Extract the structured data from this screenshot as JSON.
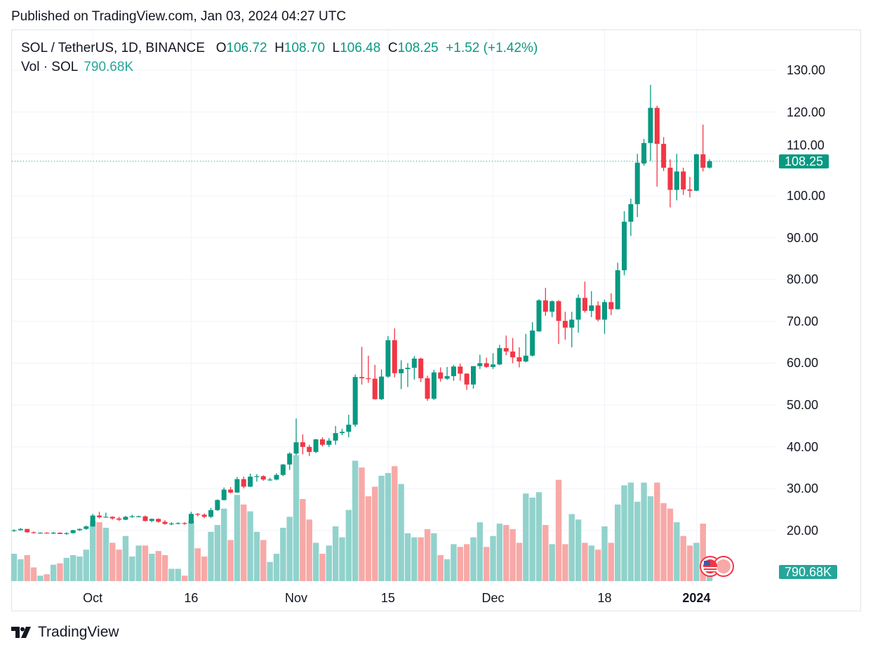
{
  "published": "Published on TradingView.com, Jan 03, 2024 04:27 UTC",
  "legend": {
    "symbol": "SOL / TetherUS, 1D, BINANCE",
    "o_label": "O",
    "o": "106.72",
    "h_label": "H",
    "h": "108.70",
    "l_label": "L",
    "l": "106.48",
    "c_label": "C",
    "c": "108.25",
    "change": "+1.52 (+1.42%)",
    "vol_label": "Vol · SOL",
    "vol_value": "790.68K"
  },
  "badges": {
    "price": "108.25",
    "volume": "790.68K"
  },
  "footer": {
    "brand": "TradingView"
  },
  "colors": {
    "up": "#089981",
    "down": "#f23645",
    "vol_up": "#92d2cc",
    "vol_down": "#f7a9a7",
    "badge_price": "#089981",
    "badge_vol": "#26a69a"
  },
  "chart_data": {
    "type": "candlestick",
    "title": "SOL / TetherUS, 1D, BINANCE",
    "ylim": [
      15,
      133
    ],
    "y_ticks": [
      "130.00",
      "120.00",
      "110.00",
      "100.00",
      "90.00",
      "80.00",
      "70.00",
      "60.00",
      "50.00",
      "40.00",
      "30.00",
      "20.00"
    ],
    "x_ticks": [
      {
        "label": "Oct",
        "date": "2023-10-01",
        "bold": false
      },
      {
        "label": "16",
        "date": "2023-10-16",
        "bold": false
      },
      {
        "label": "Nov",
        "date": "2023-11-01",
        "bold": false
      },
      {
        "label": "15",
        "date": "2023-11-15",
        "bold": false
      },
      {
        "label": "Dec",
        "date": "2023-12-01",
        "bold": false
      },
      {
        "label": "18",
        "date": "2023-12-18",
        "bold": false
      },
      {
        "label": "2024",
        "date": "2024-01-01",
        "bold": true
      }
    ],
    "last_price": 108.25,
    "volume_unit": "M SOL",
    "columns": [
      "date",
      "open",
      "high",
      "low",
      "close",
      "volume"
    ],
    "candles": [
      [
        "2023-09-19",
        19.9,
        20.3,
        19.7,
        20.1,
        2.0
      ],
      [
        "2023-09-20",
        20.1,
        20.6,
        20.0,
        20.4,
        1.6
      ],
      [
        "2023-09-21",
        20.4,
        20.4,
        19.5,
        19.6,
        1.9
      ],
      [
        "2023-09-22",
        19.6,
        19.8,
        19.3,
        19.5,
        1.0
      ],
      [
        "2023-09-23",
        19.5,
        19.6,
        19.4,
        19.5,
        0.4
      ],
      [
        "2023-09-24",
        19.5,
        19.6,
        19.3,
        19.4,
        0.5
      ],
      [
        "2023-09-25",
        19.4,
        19.7,
        19.2,
        19.5,
        1.2
      ],
      [
        "2023-09-26",
        19.5,
        19.6,
        19.2,
        19.2,
        1.3
      ],
      [
        "2023-09-27",
        19.2,
        19.6,
        19.0,
        19.4,
        1.7
      ],
      [
        "2023-09-28",
        19.4,
        20.2,
        19.3,
        20.1,
        1.9
      ],
      [
        "2023-09-29",
        20.1,
        20.5,
        19.9,
        20.4,
        1.8
      ],
      [
        "2023-09-30",
        20.4,
        21.2,
        20.2,
        21.0,
        2.3
      ],
      [
        "2023-10-01",
        21.0,
        24.0,
        20.9,
        23.6,
        4.4
      ],
      [
        "2023-10-02",
        23.6,
        24.5,
        22.9,
        23.2,
        4.3
      ],
      [
        "2023-10-03",
        23.2,
        24.3,
        23.1,
        23.3,
        3.9
      ],
      [
        "2023-10-04",
        23.3,
        23.4,
        22.6,
        22.9,
        2.8
      ],
      [
        "2023-10-05",
        22.9,
        23.3,
        22.3,
        22.6,
        2.3
      ],
      [
        "2023-10-06",
        22.6,
        23.5,
        22.5,
        23.3,
        3.3
      ],
      [
        "2023-10-07",
        23.3,
        23.8,
        23.1,
        23.4,
        1.8
      ],
      [
        "2023-10-08",
        23.4,
        23.6,
        23.2,
        23.4,
        2.6
      ],
      [
        "2023-10-09",
        23.4,
        23.6,
        22.2,
        22.3,
        2.6
      ],
      [
        "2023-10-10",
        22.3,
        22.9,
        22.0,
        22.8,
        2.0
      ],
      [
        "2023-10-11",
        22.8,
        22.9,
        21.9,
        22.1,
        2.2
      ],
      [
        "2023-10-12",
        22.1,
        22.5,
        21.4,
        21.6,
        1.9
      ],
      [
        "2023-10-13",
        21.6,
        22.0,
        21.3,
        21.7,
        0.9
      ],
      [
        "2023-10-14",
        21.7,
        22.0,
        21.5,
        21.8,
        0.9
      ],
      [
        "2023-10-15",
        21.8,
        22.0,
        21.4,
        21.7,
        0.4
      ],
      [
        "2023-10-16",
        21.7,
        24.5,
        21.6,
        24.0,
        4.4
      ],
      [
        "2023-10-17",
        24.0,
        24.2,
        23.4,
        23.8,
        2.4
      ],
      [
        "2023-10-18",
        23.8,
        24.1,
        23.0,
        23.3,
        1.8
      ],
      [
        "2023-10-19",
        23.3,
        25.4,
        23.0,
        24.9,
        3.6
      ],
      [
        "2023-10-20",
        24.9,
        27.5,
        24.7,
        27.3,
        4.1
      ],
      [
        "2023-10-21",
        27.3,
        30.3,
        27.2,
        29.8,
        5.3
      ],
      [
        "2023-10-22",
        29.8,
        30.4,
        28.9,
        29.1,
        3.0
      ],
      [
        "2023-10-23",
        29.1,
        32.8,
        29.0,
        32.3,
        6.3
      ],
      [
        "2023-10-24",
        32.3,
        32.9,
        30.1,
        30.5,
        5.6
      ],
      [
        "2023-10-25",
        30.5,
        33.6,
        30.4,
        32.9,
        5.1
      ],
      [
        "2023-10-26",
        32.9,
        33.5,
        31.7,
        33.0,
        3.6
      ],
      [
        "2023-10-27",
        33.0,
        33.2,
        31.9,
        32.2,
        3.0
      ],
      [
        "2023-10-28",
        32.2,
        32.6,
        31.9,
        32.2,
        1.4
      ],
      [
        "2023-10-29",
        32.2,
        33.7,
        32.0,
        33.3,
        2.0
      ],
      [
        "2023-10-30",
        33.3,
        35.9,
        33.0,
        35.8,
        3.9
      ],
      [
        "2023-10-31",
        35.8,
        38.7,
        34.5,
        38.4,
        4.7
      ],
      [
        "2023-11-01",
        38.4,
        46.8,
        38.0,
        41.1,
        9.2
      ],
      [
        "2023-11-02",
        41.1,
        43.0,
        38.2,
        40.0,
        6.0
      ],
      [
        "2023-11-03",
        40.0,
        40.5,
        37.8,
        38.8,
        4.5
      ],
      [
        "2023-11-04",
        38.8,
        41.9,
        38.5,
        41.8,
        2.8
      ],
      [
        "2023-11-05",
        41.8,
        42.3,
        40.1,
        40.5,
        2.0
      ],
      [
        "2023-11-06",
        40.5,
        42.1,
        40.0,
        41.5,
        2.6
      ],
      [
        "2023-11-07",
        41.5,
        45.0,
        40.5,
        43.3,
        4.0
      ],
      [
        "2023-11-08",
        43.3,
        44.3,
        42.8,
        43.6,
        3.2
      ],
      [
        "2023-11-09",
        43.6,
        47.7,
        42.3,
        45.3,
        5.2
      ],
      [
        "2023-11-10",
        45.3,
        57.3,
        44.8,
        56.7,
        8.8
      ],
      [
        "2023-11-11",
        56.7,
        63.9,
        54.9,
        56.4,
        8.3
      ],
      [
        "2023-11-12",
        56.4,
        61.8,
        55.3,
        56.3,
        6.2
      ],
      [
        "2023-11-13",
        56.3,
        59.6,
        51.3,
        51.4,
        6.9
      ],
      [
        "2023-11-14",
        51.4,
        58.5,
        51.2,
        56.8,
        7.7
      ],
      [
        "2023-11-15",
        56.8,
        66.5,
        56.5,
        65.5,
        7.9
      ],
      [
        "2023-11-16",
        65.5,
        68.3,
        56.6,
        57.6,
        8.4
      ],
      [
        "2023-11-17",
        57.6,
        60.7,
        53.8,
        58.6,
        7.1
      ],
      [
        "2023-11-18",
        58.6,
        60.0,
        54.3,
        58.9,
        3.5
      ],
      [
        "2023-11-19",
        58.9,
        61.7,
        56.1,
        61.1,
        3.2
      ],
      [
        "2023-11-20",
        61.1,
        61.3,
        55.5,
        56.4,
        3.2
      ],
      [
        "2023-11-21",
        56.4,
        57.0,
        51.0,
        51.5,
        3.8
      ],
      [
        "2023-11-22",
        51.5,
        58.4,
        51.2,
        57.8,
        3.5
      ],
      [
        "2023-11-23",
        57.8,
        59.0,
        55.6,
        56.3,
        1.9
      ],
      [
        "2023-11-24",
        56.3,
        59.1,
        56.0,
        56.9,
        1.6
      ],
      [
        "2023-11-25",
        56.9,
        59.6,
        55.8,
        59.2,
        2.7
      ],
      [
        "2023-11-26",
        59.2,
        59.9,
        55.8,
        57.5,
        2.5
      ],
      [
        "2023-11-27",
        57.5,
        57.6,
        53.6,
        54.9,
        2.7
      ],
      [
        "2023-11-28",
        54.9,
        59.3,
        53.9,
        59.3,
        3.2
      ],
      [
        "2023-11-29",
        59.3,
        62.0,
        58.6,
        60.0,
        4.3
      ],
      [
        "2023-11-30",
        60.0,
        61.3,
        58.9,
        59.1,
        2.5
      ],
      [
        "2023-12-01",
        59.1,
        62.4,
        58.6,
        59.7,
        3.3
      ],
      [
        "2023-12-02",
        59.7,
        64.4,
        59.5,
        63.6,
        4.2
      ],
      [
        "2023-12-03",
        63.6,
        66.6,
        61.9,
        62.8,
        4.1
      ],
      [
        "2023-12-04",
        62.8,
        66.0,
        60.0,
        61.4,
        3.8
      ],
      [
        "2023-12-05",
        61.4,
        63.8,
        59.0,
        60.4,
        2.8
      ],
      [
        "2023-12-06",
        60.4,
        67.0,
        60.2,
        61.8,
        6.4
      ],
      [
        "2023-12-07",
        61.8,
        69.8,
        61.6,
        67.8,
        6.1
      ],
      [
        "2023-12-08",
        67.6,
        75.3,
        67.5,
        75.0,
        6.5
      ],
      [
        "2023-12-09",
        75.0,
        78.0,
        71.3,
        72.3,
        4.1
      ],
      [
        "2023-12-10",
        72.3,
        75.0,
        71.0,
        74.8,
        2.7
      ],
      [
        "2023-12-11",
        74.8,
        75.1,
        64.6,
        70.1,
        7.4
      ],
      [
        "2023-12-12",
        70.1,
        72.3,
        65.6,
        68.5,
        2.7
      ],
      [
        "2023-12-13",
        68.5,
        72.3,
        63.8,
        70.4,
        4.9
      ],
      [
        "2023-12-14",
        70.4,
        76.4,
        67.3,
        75.6,
        4.5
      ],
      [
        "2023-12-15",
        75.6,
        79.5,
        72.1,
        72.5,
        2.8
      ],
      [
        "2023-12-16",
        72.5,
        77.2,
        71.0,
        73.8,
        2.6
      ],
      [
        "2023-12-17",
        73.8,
        74.8,
        70.0,
        70.4,
        2.3
      ],
      [
        "2023-12-18",
        70.4,
        75.2,
        67.0,
        74.6,
        4.0
      ],
      [
        "2023-12-19",
        74.6,
        76.7,
        71.5,
        72.9,
        2.8
      ],
      [
        "2023-12-20",
        72.9,
        84.0,
        72.8,
        82.2,
        5.6
      ],
      [
        "2023-12-21",
        82.2,
        96.3,
        81.0,
        93.8,
        7.0
      ],
      [
        "2023-12-22",
        93.8,
        99.3,
        90.4,
        98.0,
        7.2
      ],
      [
        "2023-12-23",
        98.0,
        110.0,
        94.9,
        107.9,
        5.8
      ],
      [
        "2023-12-24",
        107.7,
        113.6,
        107.2,
        112.6,
        7.2
      ],
      [
        "2023-12-25",
        112.6,
        126.5,
        108.3,
        121.0,
        6.2
      ],
      [
        "2023-12-26",
        121.0,
        121.5,
        102.2,
        112.4,
        7.2
      ],
      [
        "2023-12-27",
        112.4,
        114.0,
        105.9,
        106.7,
        5.7
      ],
      [
        "2023-12-28",
        106.7,
        108.7,
        97.2,
        101.4,
        5.3
      ],
      [
        "2023-12-29",
        101.4,
        110.0,
        98.9,
        105.8,
        4.3
      ],
      [
        "2023-12-30",
        105.8,
        106.7,
        100.2,
        101.5,
        3.3
      ],
      [
        "2023-12-31",
        101.5,
        104.5,
        99.6,
        101.2,
        2.6
      ],
      [
        "2024-01-01",
        101.2,
        110.0,
        101.1,
        109.9,
        2.8
      ],
      [
        "2024-01-02",
        109.9,
        117.0,
        105.8,
        106.7,
        4.2
      ],
      [
        "2024-01-03",
        106.72,
        108.7,
        106.48,
        108.25,
        0.79068
      ]
    ]
  }
}
